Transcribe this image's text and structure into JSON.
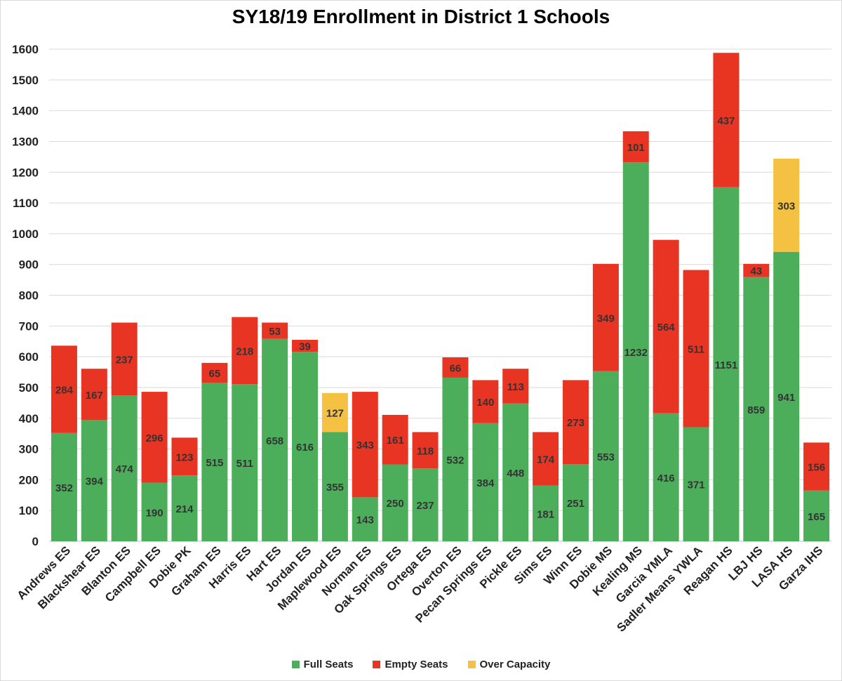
{
  "chart_data": {
    "type": "bar",
    "stacked": true,
    "title": "SY18/19 Enrollment in District 1 Schools",
    "xlabel": "",
    "ylabel": "",
    "ylim": [
      0,
      1600
    ],
    "yticks": [
      0,
      100,
      200,
      300,
      400,
      500,
      600,
      700,
      800,
      900,
      1000,
      1100,
      1200,
      1300,
      1400,
      1500,
      1600
    ],
    "grid": true,
    "legend_position": "bottom",
    "categories": [
      "Andrews ES",
      "Blackshear ES",
      "Blanton ES",
      "Campbell ES",
      "Dobie PK",
      "Graham ES",
      "Harris ES",
      "Hart ES",
      "Jordan ES",
      "Maplewood ES",
      "Norman ES",
      "Oak Springs ES",
      "Ortega ES",
      "Overton ES",
      "Pecan Springs ES",
      "Pickle ES",
      "Sims ES",
      "Winn ES",
      "Dobie MS",
      "Kealing MS",
      "Garcia YMLA",
      "Sadler Means YWLA",
      "Reagan HS",
      "LBJ HS",
      "LASA HS",
      "Garza IHS"
    ],
    "series": [
      {
        "name": "Full Seats",
        "color": "#4cae5b",
        "values": [
          352,
          394,
          474,
          190,
          214,
          515,
          511,
          658,
          616,
          355,
          143,
          250,
          237,
          532,
          384,
          448,
          181,
          251,
          553,
          1232,
          416,
          371,
          1151,
          859,
          941,
          165
        ]
      },
      {
        "name": "Empty Seats",
        "color": "#e83423",
        "values": [
          284,
          167,
          237,
          296,
          123,
          65,
          218,
          53,
          39,
          null,
          343,
          161,
          118,
          66,
          140,
          113,
          174,
          273,
          349,
          101,
          564,
          511,
          437,
          43,
          null,
          156
        ]
      },
      {
        "name": "Over Capacity",
        "color": "#f4c142",
        "values": [
          null,
          null,
          null,
          null,
          null,
          null,
          null,
          null,
          null,
          127,
          null,
          null,
          null,
          null,
          null,
          null,
          null,
          null,
          null,
          null,
          null,
          null,
          null,
          null,
          303,
          null
        ]
      }
    ]
  }
}
